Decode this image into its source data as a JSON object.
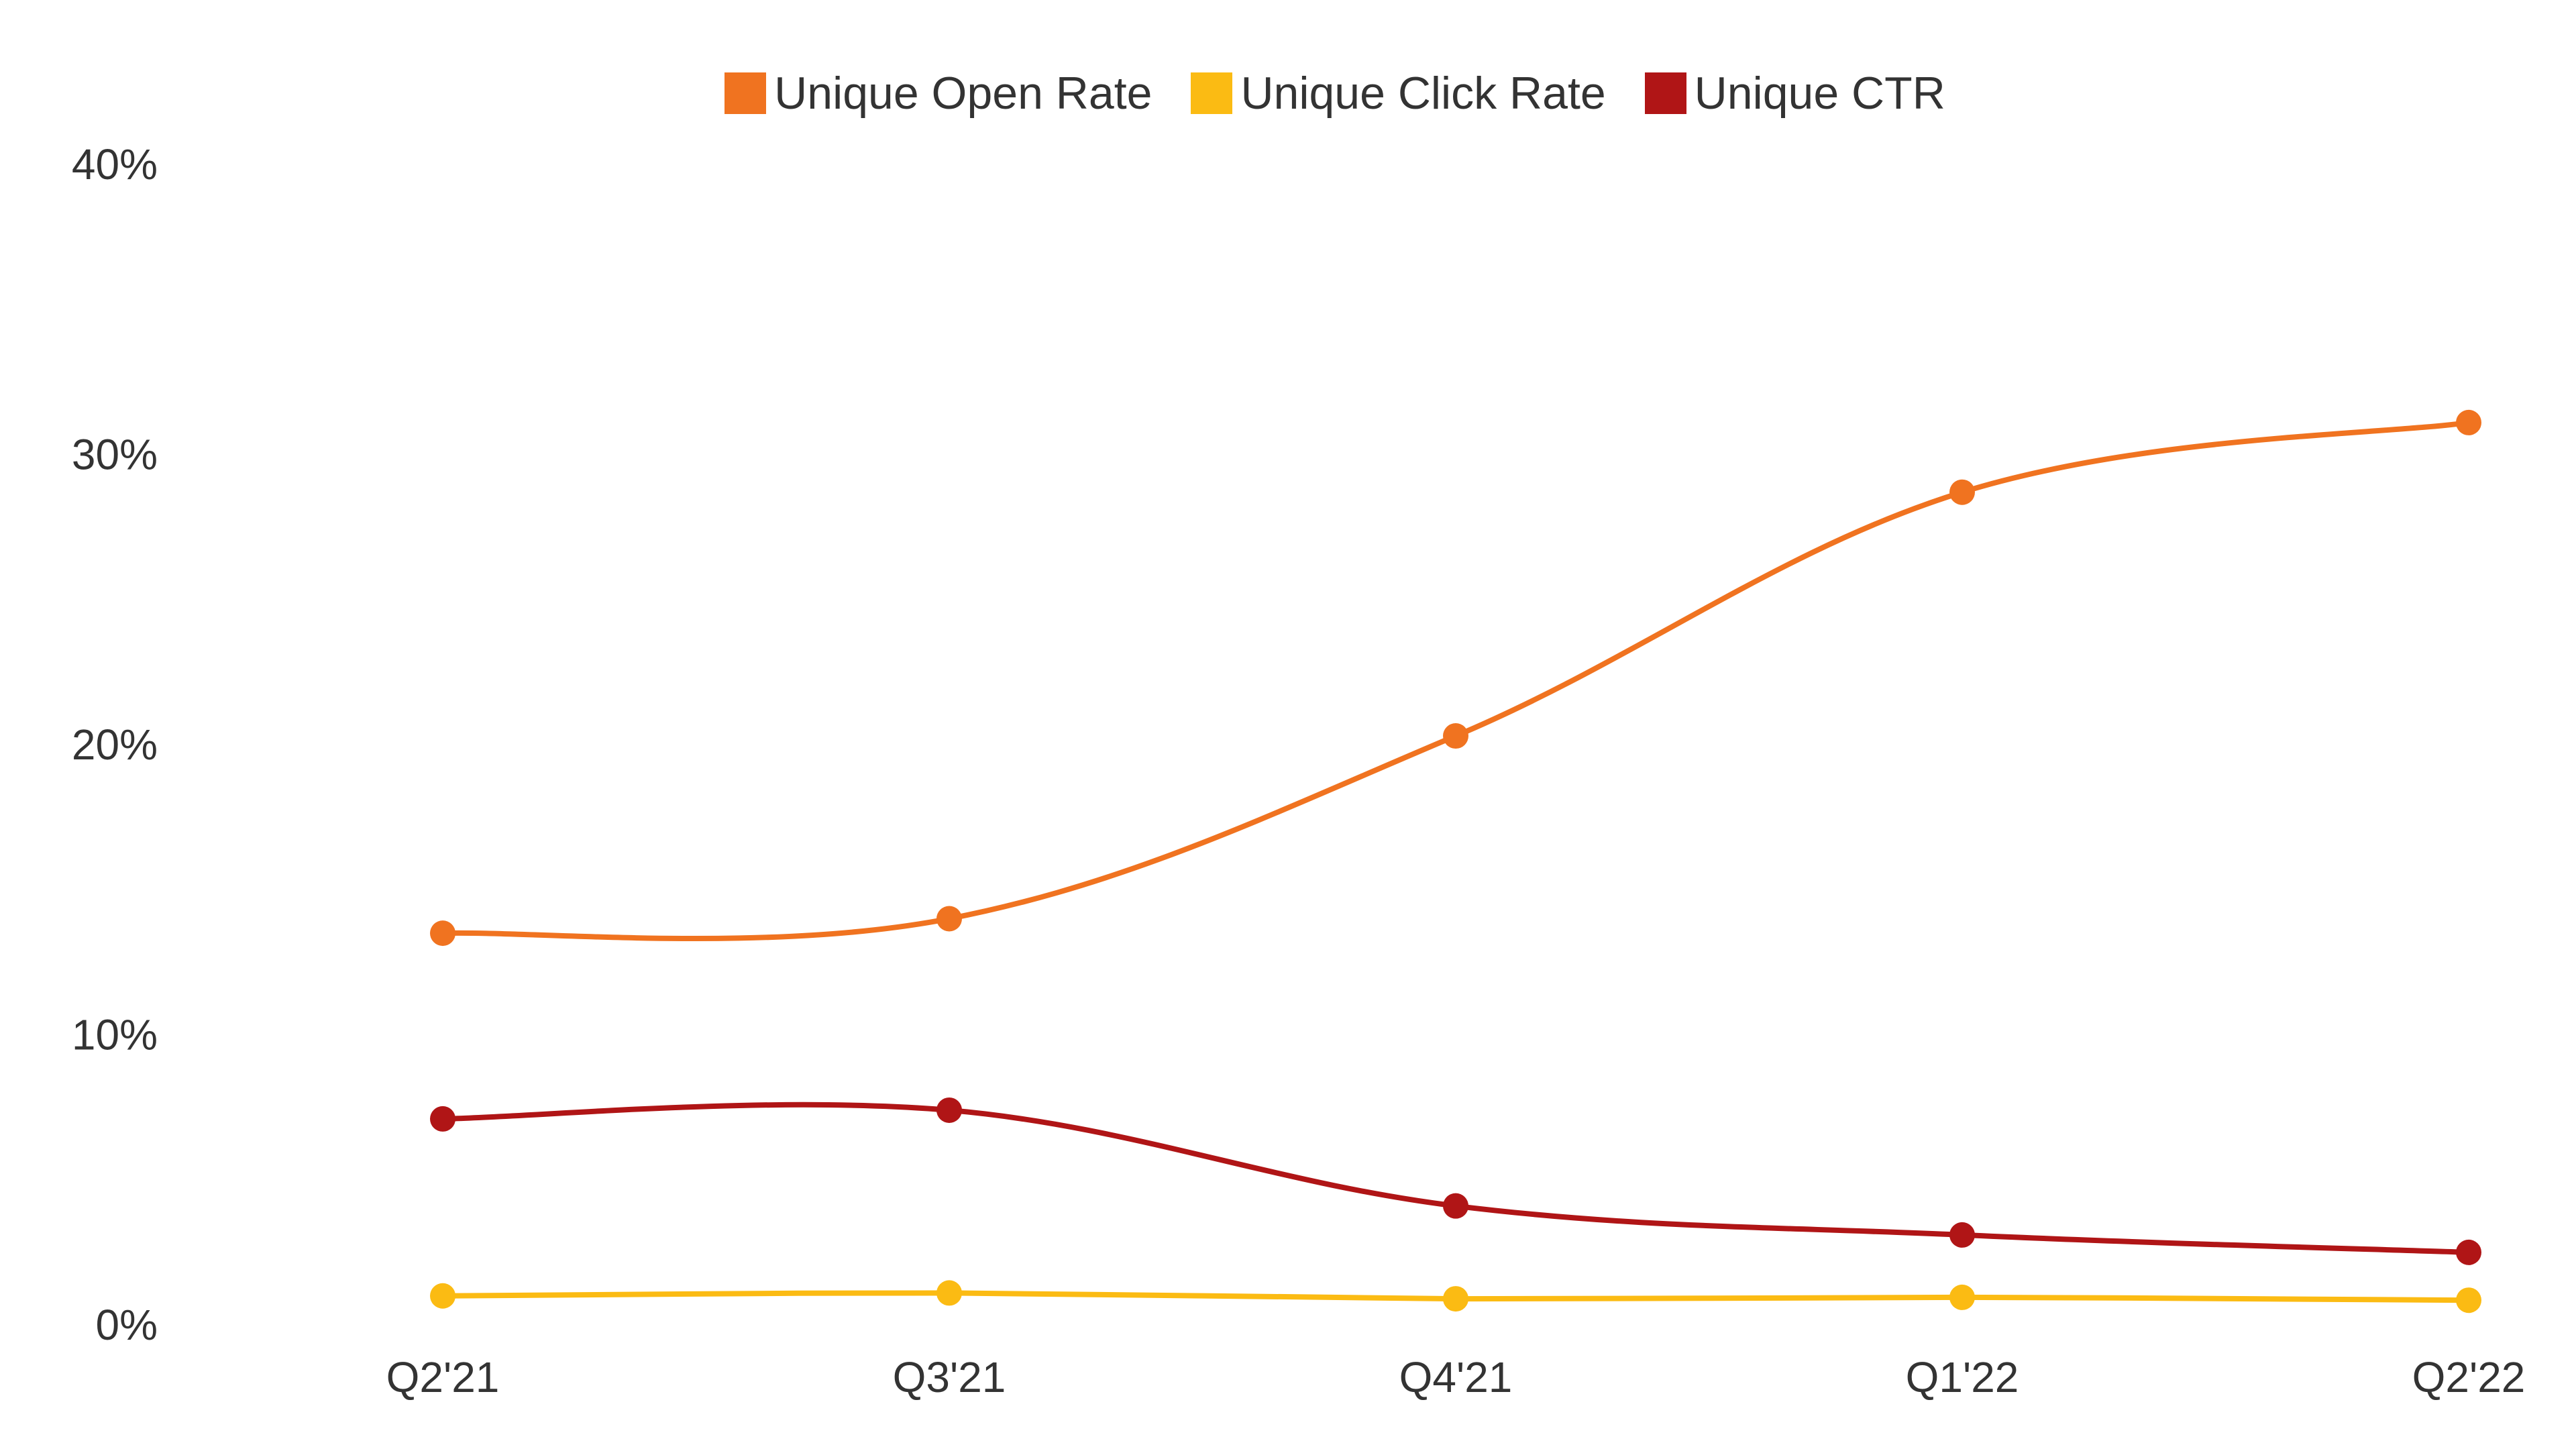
{
  "chart_data": {
    "type": "line",
    "title": "",
    "xlabel": "",
    "ylabel": "",
    "categories": [
      "Q2'21",
      "Q3'21",
      "Q4'21",
      "Q1'22",
      "Q2'22"
    ],
    "ylim": [
      0,
      40
    ],
    "yticks": [
      "0%",
      "10%",
      "20%",
      "30%",
      "40%"
    ],
    "ytick_values": [
      0,
      10,
      20,
      30,
      40
    ],
    "grid": false,
    "legend_position": "top-center",
    "smooth": true,
    "series": [
      {
        "name": "Unique Open Rate",
        "color": "#f07320",
        "values": [
          13.5,
          14.0,
          20.3,
          28.7,
          31.1
        ]
      },
      {
        "name": "Unique Click Rate",
        "color": "#fbbb13",
        "values": [
          1.0,
          1.1,
          0.9,
          0.95,
          0.85
        ]
      },
      {
        "name": "Unique CTR",
        "color": "#b01516",
        "values": [
          7.1,
          7.4,
          4.1,
          3.1,
          2.5
        ]
      }
    ]
  }
}
